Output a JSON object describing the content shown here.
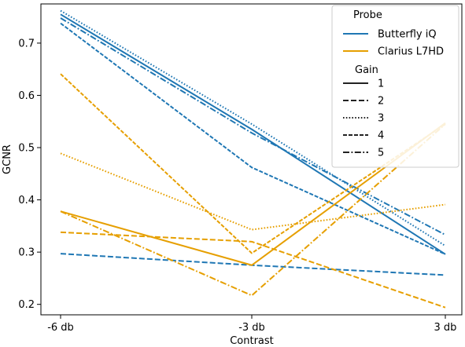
{
  "chart_data": {
    "type": "line",
    "xlabel": "Contrast",
    "ylabel": "GCNR",
    "categories": [
      "-6 db",
      "-3 db",
      "3 db"
    ],
    "ylim": [
      0.18,
      0.775
    ],
    "yticks": [
      "0.2",
      "0.3",
      "0.4",
      "0.5",
      "0.6",
      "0.7"
    ],
    "grid": false,
    "legend": {
      "placement": "top-right",
      "hue_title": "Probe",
      "style_title": "Gain",
      "hue_entries": [
        {
          "label": "Butterfly iQ",
          "color": "#1f77b4"
        },
        {
          "label": "Clarius L7HD",
          "color": "#e69f00"
        }
      ],
      "style_entries": [
        {
          "label": "1",
          "style": "solid"
        },
        {
          "label": "2",
          "style": "dashed"
        },
        {
          "label": "3",
          "style": "dotted"
        },
        {
          "label": "4",
          "style": "dashed-short"
        },
        {
          "label": "5",
          "style": "dashdot"
        }
      ]
    },
    "series": [
      {
        "probe": "Butterfly iQ",
        "gain": "1",
        "values": [
          0.755,
          0.535,
          0.296
        ]
      },
      {
        "probe": "Butterfly iQ",
        "gain": "2",
        "values": [
          0.297,
          0.275,
          0.256
        ]
      },
      {
        "probe": "Butterfly iQ",
        "gain": "3",
        "values": [
          0.762,
          0.545,
          0.312
        ]
      },
      {
        "probe": "Butterfly iQ",
        "gain": "4",
        "values": [
          0.738,
          0.462,
          0.296
        ]
      },
      {
        "probe": "Butterfly iQ",
        "gain": "5",
        "values": [
          0.748,
          0.528,
          0.333
        ]
      },
      {
        "probe": "Clarius L7HD",
        "gain": "1",
        "values": [
          0.378,
          0.275,
          0.547
        ]
      },
      {
        "probe": "Clarius L7HD",
        "gain": "2",
        "values": [
          0.338,
          0.32,
          0.194
        ]
      },
      {
        "probe": "Clarius L7HD",
        "gain": "3",
        "values": [
          0.489,
          0.343,
          0.391
        ]
      },
      {
        "probe": "Clarius L7HD",
        "gain": "4",
        "values": [
          0.641,
          0.298,
          0.545
        ]
      },
      {
        "probe": "Clarius L7HD",
        "gain": "5",
        "values": [
          0.378,
          0.217,
          0.545
        ]
      }
    ]
  }
}
